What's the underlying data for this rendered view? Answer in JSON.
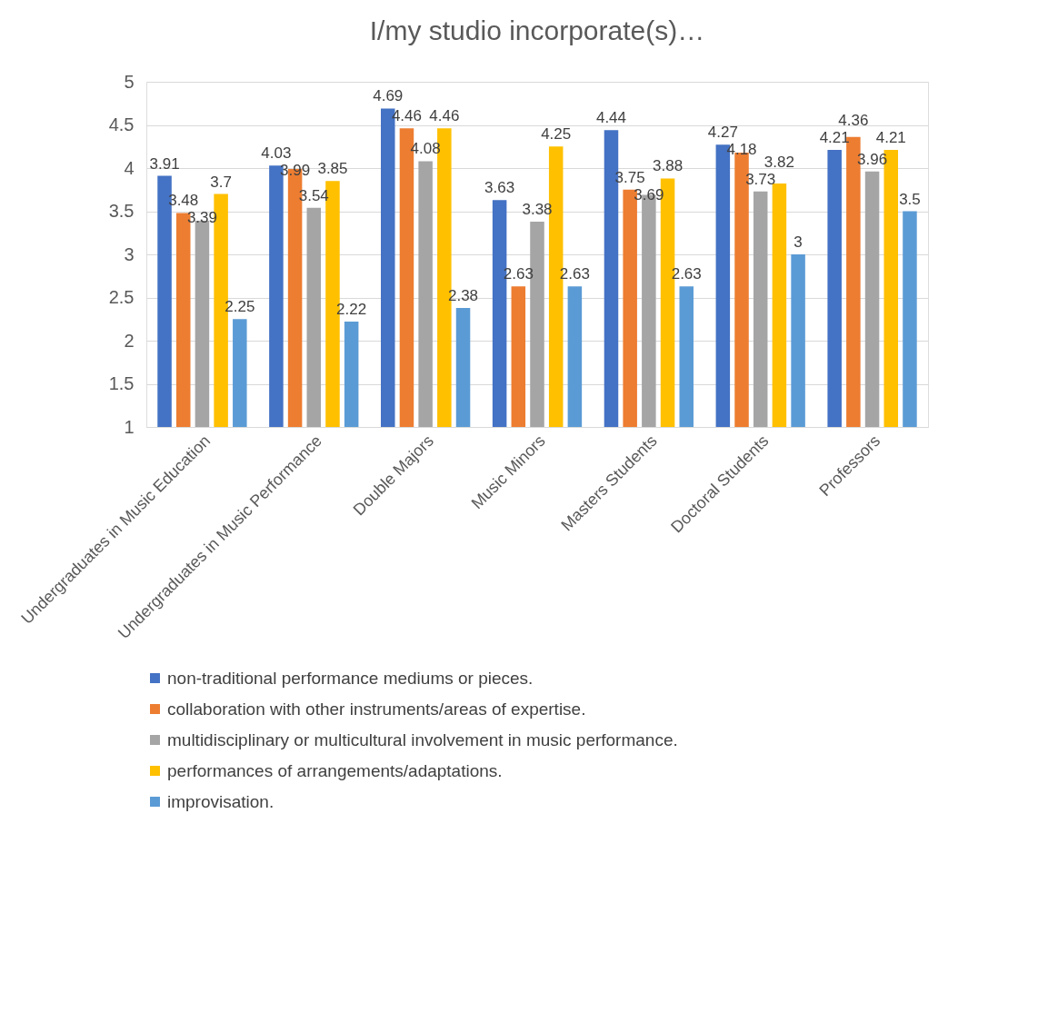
{
  "chart_data": {
    "type": "bar",
    "title": "I/my studio incorporate(s)…",
    "categories": [
      "Undergraduates in Music Education",
      "Undergraduates in Music Performance",
      "Double Majors",
      "Music Minors",
      "Masters Students",
      "Doctoral Students",
      "Professors"
    ],
    "series": [
      {
        "name": "non-traditional performance mediums or pieces.",
        "color": "#4472c4",
        "values": [
          3.91,
          4.03,
          4.69,
          3.63,
          4.44,
          4.27,
          4.21
        ]
      },
      {
        "name": "collaboration with other  instruments/areas of expertise.",
        "color": "#ed7d31",
        "values": [
          3.48,
          3.99,
          4.46,
          2.63,
          3.75,
          4.18,
          4.36
        ]
      },
      {
        "name": "multidisciplinary or multicultural involvement in music performance.",
        "color": "#a5a5a5",
        "values": [
          3.39,
          3.54,
          4.08,
          3.38,
          3.69,
          3.73,
          3.96
        ]
      },
      {
        "name": "performances of arrangements/adaptations.",
        "color": "#ffc000",
        "values": [
          3.7,
          3.85,
          4.46,
          4.25,
          3.88,
          3.82,
          4.21
        ]
      },
      {
        "name": "improvisation.",
        "color": "#5b9bd5",
        "values": [
          2.25,
          2.22,
          2.38,
          2.63,
          2.63,
          3,
          3.5
        ]
      }
    ],
    "ylim": [
      1,
      5
    ],
    "yticks": [
      1,
      1.5,
      2,
      2.5,
      3,
      3.5,
      4,
      4.5,
      5
    ],
    "grid": "y",
    "legend": "bottom",
    "data_labels": true
  }
}
